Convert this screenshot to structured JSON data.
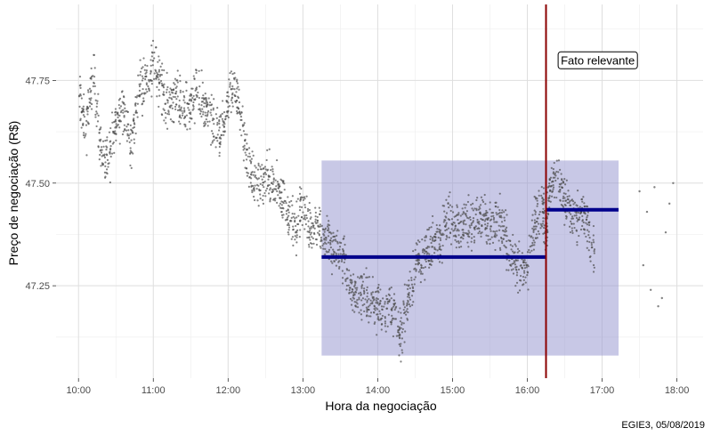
{
  "chart_data": {
    "type": "scatter",
    "title": "",
    "xlabel": "Hora da negociação",
    "ylabel": "Preço de negociação (R$)",
    "caption": "EGIE3, 05/08/2019",
    "x_ticks": [
      "10:00",
      "11:00",
      "12:00",
      "13:00",
      "14:00",
      "15:00",
      "16:00",
      "17:00",
      "18:00"
    ],
    "y_ticks": [
      "47.25",
      "47.50",
      "47.75"
    ],
    "xlim_hours": [
      9.7,
      18.35
    ],
    "ylim": [
      47.025,
      47.935
    ],
    "grid": true,
    "point_color": "#4d4d4d",
    "trade_path_hours": [
      10.0,
      10.1,
      10.2,
      10.3,
      10.4,
      10.5,
      10.6,
      10.7,
      10.8,
      10.9,
      11.0,
      11.1,
      11.2,
      11.3,
      11.4,
      11.5,
      11.6,
      11.7,
      11.8,
      11.9,
      12.0,
      12.1,
      12.2,
      12.3,
      12.4,
      12.5,
      12.6,
      12.7,
      12.8,
      12.9,
      13.0,
      13.1,
      13.2,
      13.3,
      13.4,
      13.5,
      13.6,
      13.7,
      13.8,
      13.9,
      14.0,
      14.1,
      14.2,
      14.3,
      14.4,
      14.5,
      14.6,
      14.7,
      14.8,
      14.9,
      15.0,
      15.1,
      15.2,
      15.3,
      15.4,
      15.5,
      15.6,
      15.7,
      15.8,
      15.9,
      16.0,
      16.1,
      16.2,
      16.25,
      16.3,
      16.4,
      16.5,
      16.6,
      16.7,
      16.8,
      16.9
    ],
    "trade_path_prices": [
      47.72,
      47.62,
      47.78,
      47.58,
      47.55,
      47.65,
      47.69,
      47.58,
      47.72,
      47.76,
      47.79,
      47.74,
      47.69,
      47.72,
      47.67,
      47.7,
      47.72,
      47.67,
      47.64,
      47.61,
      47.7,
      47.73,
      47.62,
      47.52,
      47.49,
      47.52,
      47.49,
      47.47,
      47.44,
      47.38,
      47.45,
      47.39,
      47.41,
      47.36,
      47.34,
      47.33,
      47.28,
      47.22,
      47.24,
      47.2,
      47.21,
      47.19,
      47.2,
      47.12,
      47.22,
      47.28,
      47.32,
      47.35,
      47.36,
      47.4,
      47.42,
      47.39,
      47.41,
      47.4,
      47.42,
      47.38,
      47.41,
      47.37,
      47.32,
      47.28,
      47.3,
      47.4,
      47.45,
      47.38,
      47.48,
      47.52,
      47.46,
      47.42,
      47.43,
      47.4,
      47.31
    ],
    "after_hours_hours": [
      17.5,
      17.55,
      17.6,
      17.65,
      17.7,
      17.75,
      17.8,
      17.85,
      17.9,
      17.95
    ],
    "after_hours_prices": [
      47.48,
      47.3,
      47.43,
      47.24,
      47.49,
      47.2,
      47.22,
      47.38,
      47.45,
      47.5
    ],
    "event_window": {
      "x_start": 13.25,
      "x_end": 17.22,
      "y_min": 47.08,
      "y_max": 47.555,
      "fill": "#9b9bd1"
    },
    "mean_before": {
      "x_start": 13.25,
      "x_end": 16.25,
      "value": 47.32,
      "color": "#00008b"
    },
    "mean_after": {
      "x_start": 16.25,
      "x_end": 17.22,
      "value": 47.435,
      "color": "#00008b"
    },
    "event_line": {
      "x": 16.25,
      "color": "#8b0000",
      "label": "Fato relevante",
      "label_x": 16.4,
      "label_y": 47.8
    }
  }
}
